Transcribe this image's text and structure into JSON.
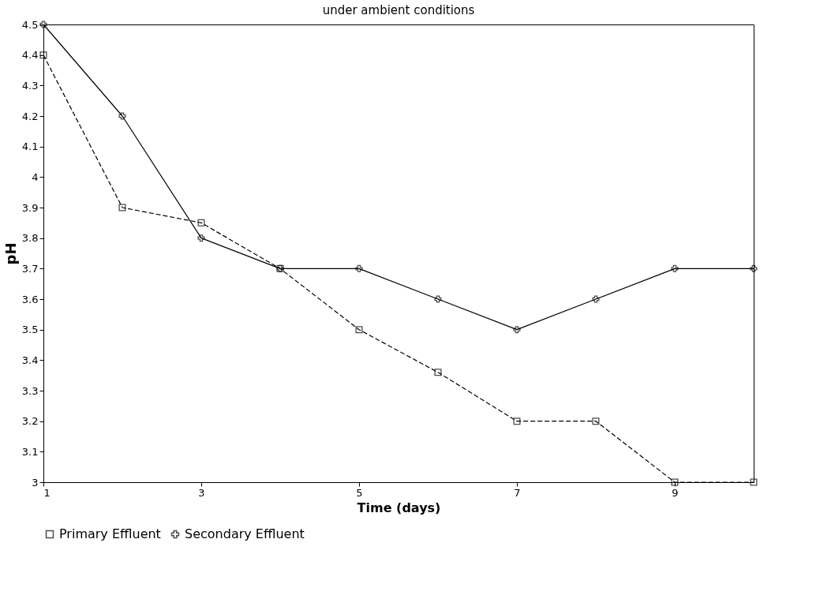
{
  "chart_data": {
    "type": "line",
    "title": "under ambient conditions",
    "xlabel": "Time (days)",
    "ylabel": "pH",
    "x": [
      1,
      2,
      3,
      4,
      5,
      6,
      7,
      8,
      9,
      10
    ],
    "xlim": [
      1,
      10
    ],
    "xticks": [
      1,
      3,
      5,
      7,
      9
    ],
    "ylim": [
      3,
      4.5
    ],
    "yticks": [
      3,
      3.1,
      3.2,
      3.3,
      3.4,
      3.5,
      3.6,
      3.7,
      3.8,
      3.9,
      4,
      4.1,
      4.2,
      4.3,
      4.4,
      4.5
    ],
    "grid": false,
    "legend": "bottom",
    "series": [
      {
        "name": "Primary Effluent",
        "color": "#000000",
        "marker": "square",
        "line_style": "dashed",
        "values": [
          4.4,
          3.9,
          3.85,
          3.7,
          3.5,
          3.36,
          3.2,
          3.2,
          3.0,
          3.0
        ]
      },
      {
        "name": "Secondary Effluent",
        "color": "#000000",
        "marker": "cross",
        "line_style": "solid",
        "values": [
          4.5,
          4.2,
          3.8,
          3.7,
          3.7,
          3.6,
          3.5,
          3.6,
          3.7,
          3.7
        ]
      }
    ]
  }
}
